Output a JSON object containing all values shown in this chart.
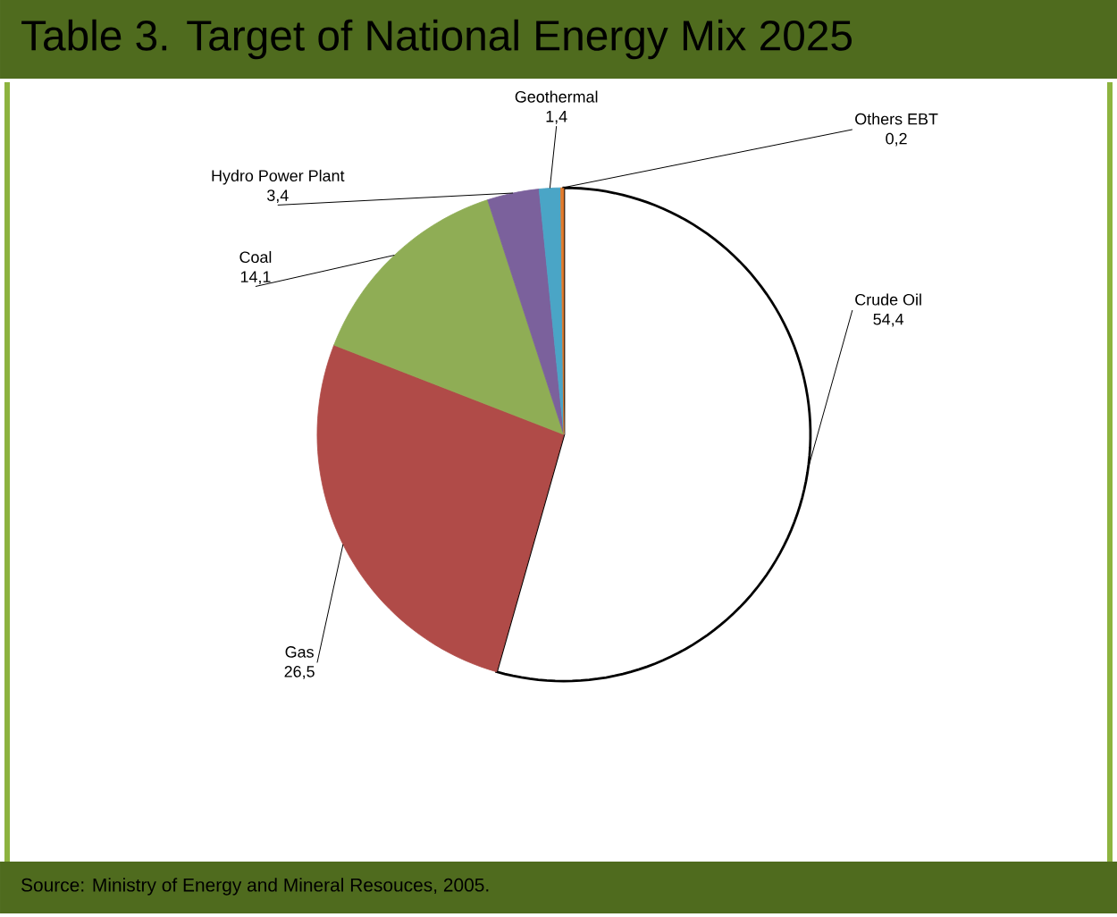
{
  "chart_data": {
    "type": "pie",
    "title": "Table 3. Target of National Energy Mix 2025",
    "categories": [
      "Crude Oil",
      "Gas",
      "Coal",
      "Hydro Power Plant",
      "Geothermal",
      "Others EBT"
    ],
    "values": [
      54.4,
      26.5,
      14.1,
      3.4,
      1.4,
      0.2
    ],
    "value_labels": [
      "54,4",
      "26,5",
      "14,1",
      "3,4",
      "1,4",
      "0,2"
    ],
    "colors": [
      "#ffffff",
      "#b04b48",
      "#8fad55",
      "#7b619c",
      "#4aa5c6",
      "#e37b2c"
    ],
    "annotations": [
      "Source: Ministry of Energy and Mineral Resouces, 2005."
    ]
  }
}
